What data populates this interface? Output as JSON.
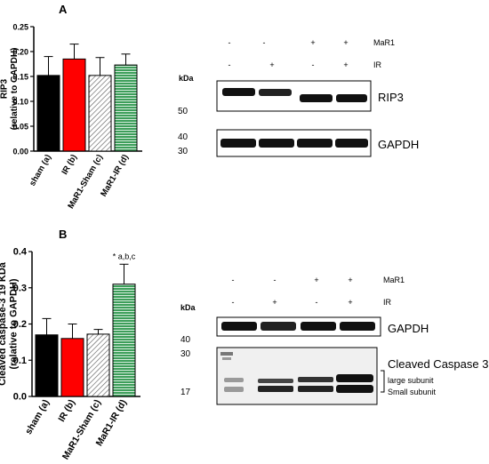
{
  "panels": {
    "A": {
      "label": "A",
      "blot": {
        "treatments": [
          {
            "name": "MaR1",
            "signs": [
              "-",
              "-",
              "+",
              "+"
            ]
          },
          {
            "name": "IR",
            "signs": [
              "-",
              "+",
              "-",
              "+"
            ]
          }
        ],
        "kda_label": "kDa",
        "markers": [
          "50",
          "40",
          "30"
        ],
        "band_labels": [
          "RIP3",
          "GAPDH"
        ]
      }
    },
    "B": {
      "label": "B",
      "blot": {
        "treatments": [
          {
            "name": "MaR1",
            "signs": [
              "-",
              "-",
              "+",
              "+"
            ]
          },
          {
            "name": "IR",
            "signs": [
              "-",
              "+",
              "-",
              "+"
            ]
          }
        ],
        "kda_label": "kDa",
        "markers": [
          "40",
          "30",
          "17"
        ],
        "band_labels": [
          "GAPDH",
          "Cleaved Caspase 3"
        ],
        "subunits": [
          "large subunit",
          "Small subunit"
        ]
      }
    }
  },
  "chart_data": [
    {
      "type": "bar",
      "panel": "A",
      "categories": [
        "sham (a)",
        "IR (b)",
        "MaR1-Sham (c)",
        "MaR1-IR (d)"
      ],
      "values": [
        0.152,
        0.185,
        0.152,
        0.173
      ],
      "errors": [
        0.038,
        0.03,
        0.036,
        0.022
      ],
      "ylabel": "RIP3 (relative to GAPDH)",
      "ylim": [
        0,
        0.25
      ],
      "yticks": [
        "0.00",
        "0.05",
        "0.10",
        "0.15",
        "0.20",
        "0.25"
      ],
      "colors": [
        "#000000",
        "#ff0000",
        "#d8d8d8",
        "#3d9e5a"
      ],
      "patterns": [
        "solid",
        "solid",
        "diagonal-hatch",
        "horizontal-lines"
      ]
    },
    {
      "type": "bar",
      "panel": "B",
      "categories": [
        "sham (a)",
        "IR (b)",
        "MaR1-Sham (c)",
        "MaR1-IR (d)"
      ],
      "values": [
        0.17,
        0.16,
        0.172,
        0.31
      ],
      "errors": [
        0.045,
        0.04,
        0.013,
        0.055
      ],
      "ylabel": "Cleaved caspase-3 19 KDa (relative to GAPDH)",
      "ylim": [
        0,
        0.4
      ],
      "yticks": [
        "0.0",
        "0.1",
        "0.2",
        "0.3",
        "0.4"
      ],
      "annotation": "* a,b,c",
      "colors": [
        "#000000",
        "#ff0000",
        "#d8d8d8",
        "#3d9e5a"
      ],
      "patterns": [
        "solid",
        "solid",
        "diagonal-hatch",
        "horizontal-lines"
      ]
    }
  ]
}
